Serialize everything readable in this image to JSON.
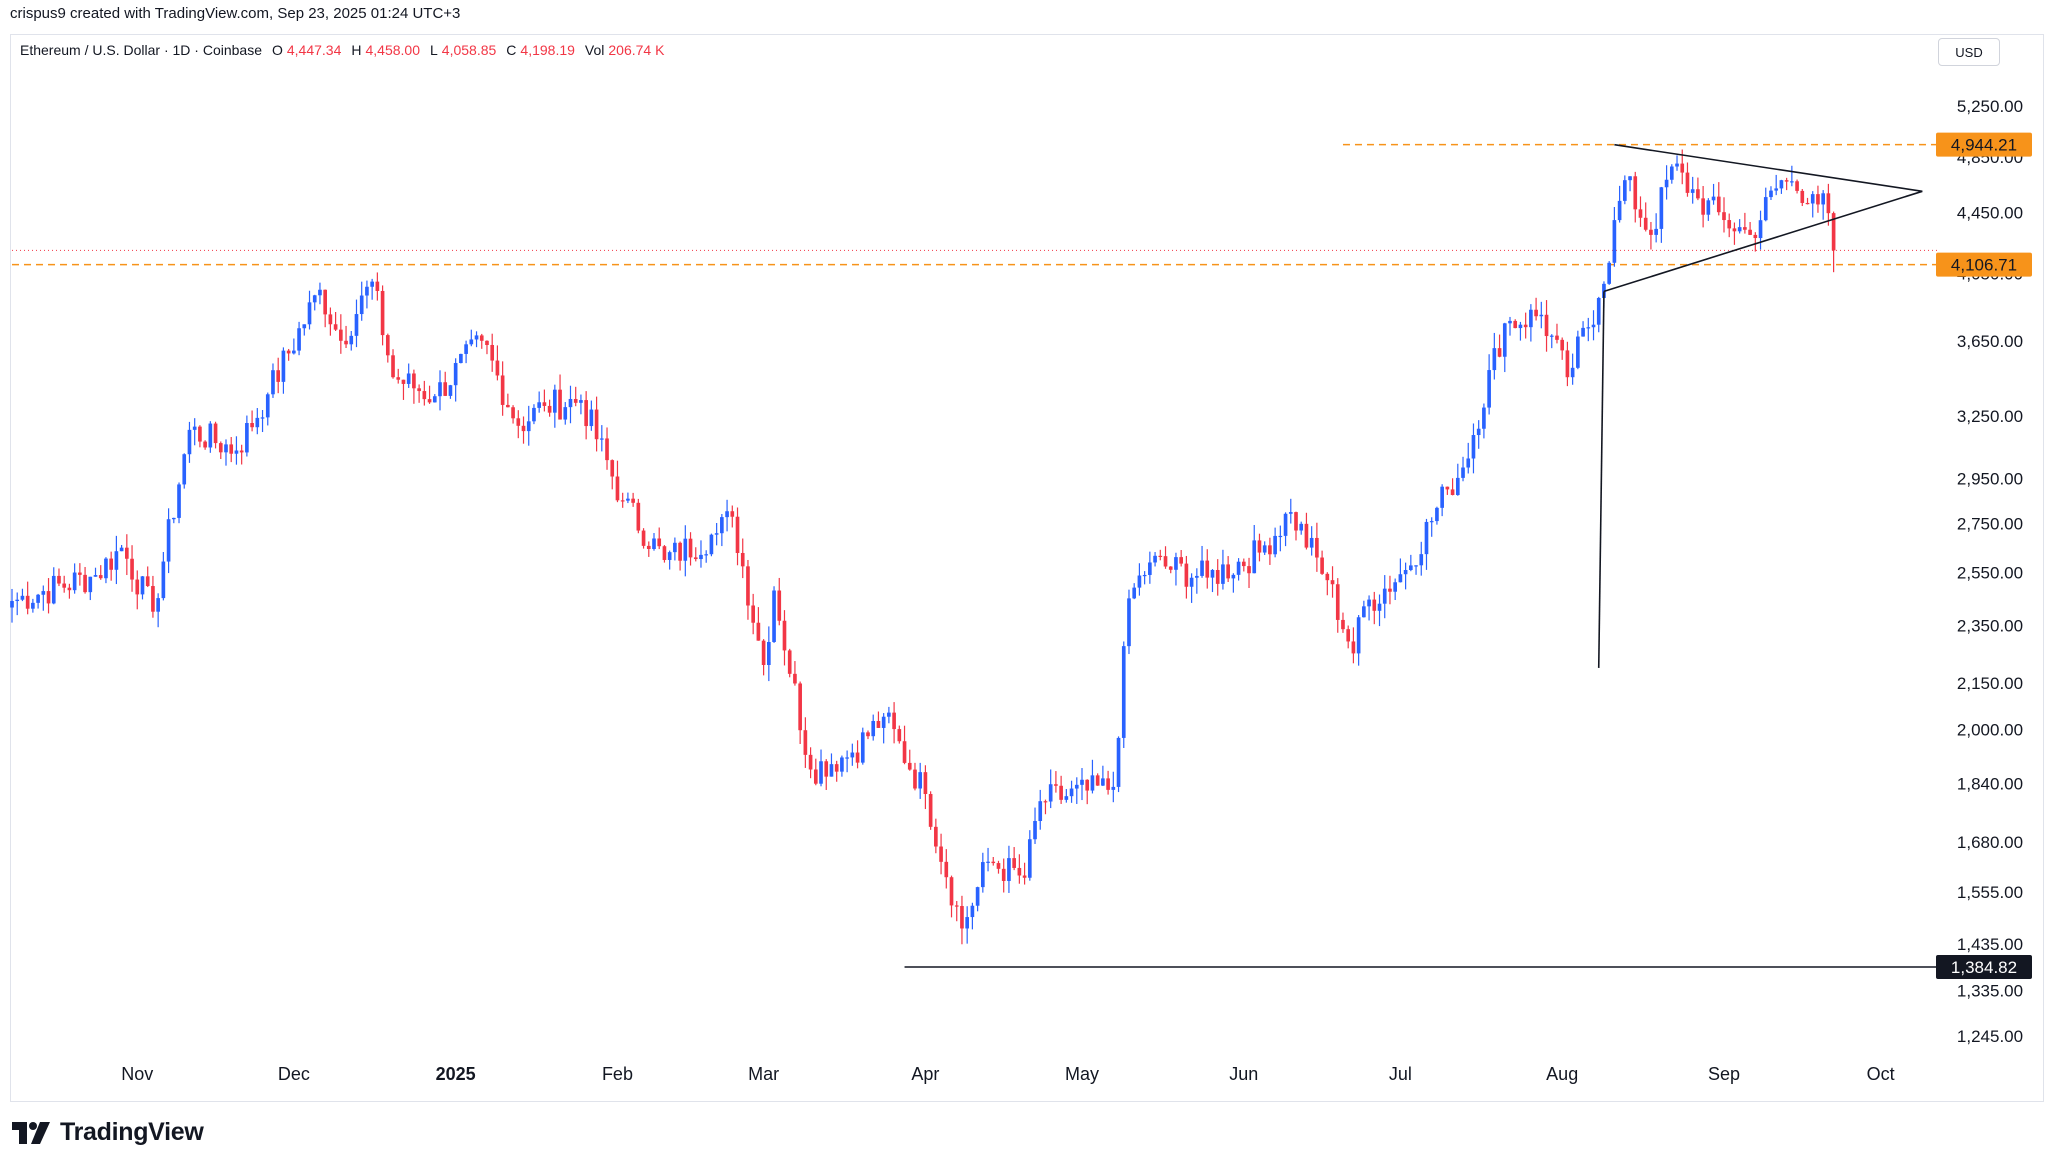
{
  "credit": "crispus9 created with TradingView.com, Sep 23, 2025 01:24 UTC+3",
  "symbol_bar": {
    "name": "Ethereum / U.S. Dollar · 1D · Coinbase",
    "o_label": "O",
    "o_value": "4,447.34",
    "h_label": "H",
    "h_value": "4,458.00",
    "l_label": "L",
    "l_value": "4,058.85",
    "c_label": "C",
    "c_value": "4,198.19",
    "vol_label": "Vol",
    "vol_value": "206.74 K"
  },
  "currency": "USD",
  "logo_text": "TradingView",
  "colors": {
    "up": "#2962ff",
    "down": "#f23645",
    "level": "#f7931a",
    "trendline": "#131722",
    "axis_text": "#131722"
  },
  "chart_data": {
    "type": "candlestick",
    "title": "Ethereum / U.S. Dollar · 1D · Coinbase",
    "y_scale": "log",
    "ylim": [
      1190,
      5550
    ],
    "x_range": [
      "2024-10-08",
      "2025-10-12"
    ],
    "y_ticks": [
      "5,250.00",
      "4,850.00",
      "4,450.00",
      "4,050.00",
      "3,650.00",
      "3,250.00",
      "2,950.00",
      "2,750.00",
      "2,550.00",
      "2,350.00",
      "2,150.00",
      "2,000.00",
      "1,840.00",
      "1,680.00",
      "1,555.00",
      "1,435.00",
      "1,335.00",
      "1,245.00"
    ],
    "x_ticks": [
      {
        "label": "Nov",
        "date": "2024-11-01"
      },
      {
        "label": "Dec",
        "date": "2024-12-01"
      },
      {
        "label": "2025",
        "date": "2025-01-01",
        "bold": true
      },
      {
        "label": "Feb",
        "date": "2025-02-01"
      },
      {
        "label": "Mar",
        "date": "2025-03-01"
      },
      {
        "label": "Apr",
        "date": "2025-04-01"
      },
      {
        "label": "May",
        "date": "2025-05-01"
      },
      {
        "label": "Jun",
        "date": "2025-06-01"
      },
      {
        "label": "Jul",
        "date": "2025-07-01"
      },
      {
        "label": "Aug",
        "date": "2025-08-01"
      },
      {
        "label": "Sep",
        "date": "2025-09-01"
      },
      {
        "label": "Oct",
        "date": "2025-10-01"
      }
    ],
    "levels": [
      {
        "label": "4,944.21",
        "value": 4944.21,
        "style": "dashed",
        "color": "#f7931a",
        "from": "2025-06-20"
      },
      {
        "label": "4,106.71",
        "value": 4106.71,
        "style": "dashed",
        "color": "#f7931a",
        "from": "2024-10-08"
      },
      {
        "label": "1,384.82",
        "value": 1384.82,
        "style": "solid",
        "color": "#131722",
        "from": "2025-03-28"
      }
    ],
    "current_price": {
      "value": 4198.19
    },
    "trendlines": [
      {
        "from": [
          "2025-08-11",
          4944
        ],
        "to": [
          "2025-10-09",
          4600
        ]
      },
      {
        "from": [
          "2025-08-09",
          3940
        ],
        "to": [
          "2025-10-09",
          4600
        ]
      },
      {
        "from": [
          "2025-08-09",
          3940
        ],
        "to": [
          "2025-08-08",
          2200
        ]
      }
    ],
    "anchors": [
      [
        "2024-10-08",
        2440
      ],
      [
        "2024-10-24",
        2540
      ],
      [
        "2024-10-29",
        2650
      ],
      [
        "2024-11-04",
        2400
      ],
      [
        "2024-11-11",
        3180
      ],
      [
        "2024-11-20",
        3080
      ],
      [
        "2024-11-26",
        3360
      ],
      [
        "2024-12-06",
        3950
      ],
      [
        "2024-12-10",
        3650
      ],
      [
        "2024-12-16",
        4000
      ],
      [
        "2024-12-20",
        3450
      ],
      [
        "2024-12-28",
        3350
      ],
      [
        "2025-01-06",
        3650
      ],
      [
        "2025-01-13",
        3200
      ],
      [
        "2025-01-18",
        3300
      ],
      [
        "2025-01-25",
        3330
      ],
      [
        "2025-02-02",
        2850
      ],
      [
        "2025-02-10",
        2600
      ],
      [
        "2025-02-20",
        2710
      ],
      [
        "2025-02-23",
        2780
      ],
      [
        "2025-03-01",
        2210
      ],
      [
        "2025-03-03",
        2480
      ],
      [
        "2025-03-10",
        1880
      ],
      [
        "2025-03-18",
        1930
      ],
      [
        "2025-03-24",
        2040
      ],
      [
        "2025-04-01",
        1810
      ],
      [
        "2025-04-08",
        1470
      ],
      [
        "2025-04-13",
        1630
      ],
      [
        "2025-04-20",
        1590
      ],
      [
        "2025-04-23",
        1790
      ],
      [
        "2025-05-07",
        1830
      ],
      [
        "2025-05-10",
        2450
      ],
      [
        "2025-05-14",
        2590
      ],
      [
        "2025-05-25",
        2530
      ],
      [
        "2025-06-04",
        2630
      ],
      [
        "2025-06-10",
        2800
      ],
      [
        "2025-06-17",
        2520
      ],
      [
        "2025-06-22",
        2250
      ],
      [
        "2025-06-24",
        2420
      ],
      [
        "2025-07-02",
        2560
      ],
      [
        "2025-07-10",
        2900
      ],
      [
        "2025-07-13",
        3000
      ],
      [
        "2025-07-21",
        3750
      ],
      [
        "2025-07-28",
        3800
      ],
      [
        "2025-08-02",
        3450
      ],
      [
        "2025-08-08",
        3900
      ],
      [
        "2025-08-13",
        4680
      ],
      [
        "2025-08-18",
        4300
      ],
      [
        "2025-08-22",
        4780
      ],
      [
        "2025-08-27",
        4550
      ],
      [
        "2025-09-01",
        4400
      ],
      [
        "2025-09-06",
        4300
      ],
      [
        "2025-09-12",
        4680
      ],
      [
        "2025-09-18",
        4580
      ],
      [
        "2025-09-21",
        4447
      ],
      [
        "2025-09-22",
        4198
      ]
    ],
    "last_candle": {
      "date": "2025-09-22",
      "open": 4447.34,
      "high": 4458.0,
      "low": 4058.85,
      "close": 4198.19
    }
  }
}
